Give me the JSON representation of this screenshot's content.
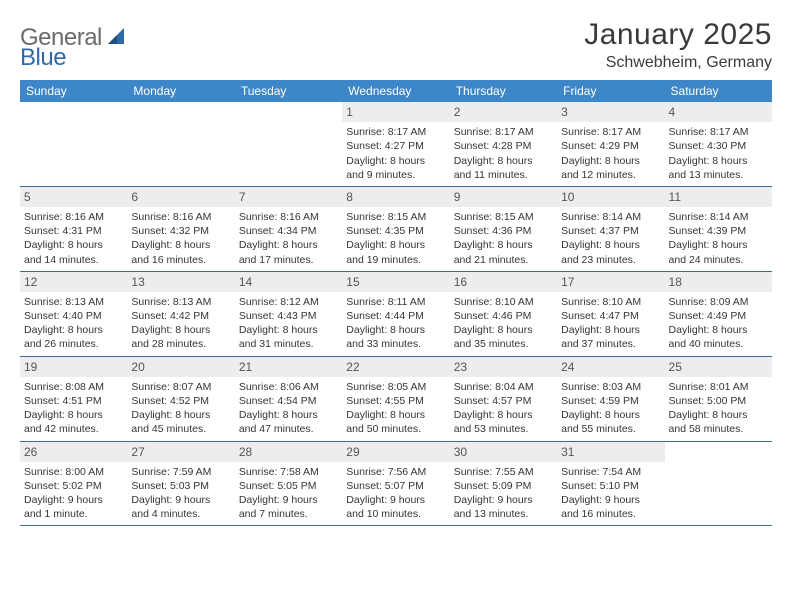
{
  "logo": {
    "part1": "General",
    "part2": "Blue"
  },
  "title": "January 2025",
  "location": "Schwebheim, Germany",
  "colors": {
    "header_bg": "#3d87c9",
    "header_text": "#ffffff",
    "daynum_bg": "#ededed",
    "border": "#3d6a9a",
    "logo_gray": "#6b6b6b",
    "logo_blue": "#2f6aa8",
    "body_text": "#353535"
  },
  "weekdays": [
    "Sunday",
    "Monday",
    "Tuesday",
    "Wednesday",
    "Thursday",
    "Friday",
    "Saturday"
  ],
  "weeks": [
    [
      null,
      null,
      null,
      {
        "n": "1",
        "sunrise": "8:17 AM",
        "sunset": "4:27 PM",
        "day_h": 8,
        "day_m": 9
      },
      {
        "n": "2",
        "sunrise": "8:17 AM",
        "sunset": "4:28 PM",
        "day_h": 8,
        "day_m": 11
      },
      {
        "n": "3",
        "sunrise": "8:17 AM",
        "sunset": "4:29 PM",
        "day_h": 8,
        "day_m": 12
      },
      {
        "n": "4",
        "sunrise": "8:17 AM",
        "sunset": "4:30 PM",
        "day_h": 8,
        "day_m": 13
      }
    ],
    [
      {
        "n": "5",
        "sunrise": "8:16 AM",
        "sunset": "4:31 PM",
        "day_h": 8,
        "day_m": 14
      },
      {
        "n": "6",
        "sunrise": "8:16 AM",
        "sunset": "4:32 PM",
        "day_h": 8,
        "day_m": 16
      },
      {
        "n": "7",
        "sunrise": "8:16 AM",
        "sunset": "4:34 PM",
        "day_h": 8,
        "day_m": 17
      },
      {
        "n": "8",
        "sunrise": "8:15 AM",
        "sunset": "4:35 PM",
        "day_h": 8,
        "day_m": 19
      },
      {
        "n": "9",
        "sunrise": "8:15 AM",
        "sunset": "4:36 PM",
        "day_h": 8,
        "day_m": 21
      },
      {
        "n": "10",
        "sunrise": "8:14 AM",
        "sunset": "4:37 PM",
        "day_h": 8,
        "day_m": 23
      },
      {
        "n": "11",
        "sunrise": "8:14 AM",
        "sunset": "4:39 PM",
        "day_h": 8,
        "day_m": 24
      }
    ],
    [
      {
        "n": "12",
        "sunrise": "8:13 AM",
        "sunset": "4:40 PM",
        "day_h": 8,
        "day_m": 26
      },
      {
        "n": "13",
        "sunrise": "8:13 AM",
        "sunset": "4:42 PM",
        "day_h": 8,
        "day_m": 28
      },
      {
        "n": "14",
        "sunrise": "8:12 AM",
        "sunset": "4:43 PM",
        "day_h": 8,
        "day_m": 31
      },
      {
        "n": "15",
        "sunrise": "8:11 AM",
        "sunset": "4:44 PM",
        "day_h": 8,
        "day_m": 33
      },
      {
        "n": "16",
        "sunrise": "8:10 AM",
        "sunset": "4:46 PM",
        "day_h": 8,
        "day_m": 35
      },
      {
        "n": "17",
        "sunrise": "8:10 AM",
        "sunset": "4:47 PM",
        "day_h": 8,
        "day_m": 37
      },
      {
        "n": "18",
        "sunrise": "8:09 AM",
        "sunset": "4:49 PM",
        "day_h": 8,
        "day_m": 40
      }
    ],
    [
      {
        "n": "19",
        "sunrise": "8:08 AM",
        "sunset": "4:51 PM",
        "day_h": 8,
        "day_m": 42
      },
      {
        "n": "20",
        "sunrise": "8:07 AM",
        "sunset": "4:52 PM",
        "day_h": 8,
        "day_m": 45
      },
      {
        "n": "21",
        "sunrise": "8:06 AM",
        "sunset": "4:54 PM",
        "day_h": 8,
        "day_m": 47
      },
      {
        "n": "22",
        "sunrise": "8:05 AM",
        "sunset": "4:55 PM",
        "day_h": 8,
        "day_m": 50
      },
      {
        "n": "23",
        "sunrise": "8:04 AM",
        "sunset": "4:57 PM",
        "day_h": 8,
        "day_m": 53
      },
      {
        "n": "24",
        "sunrise": "8:03 AM",
        "sunset": "4:59 PM",
        "day_h": 8,
        "day_m": 55
      },
      {
        "n": "25",
        "sunrise": "8:01 AM",
        "sunset": "5:00 PM",
        "day_h": 8,
        "day_m": 58
      }
    ],
    [
      {
        "n": "26",
        "sunrise": "8:00 AM",
        "sunset": "5:02 PM",
        "day_h": 9,
        "day_m": 1
      },
      {
        "n": "27",
        "sunrise": "7:59 AM",
        "sunset": "5:03 PM",
        "day_h": 9,
        "day_m": 4
      },
      {
        "n": "28",
        "sunrise": "7:58 AM",
        "sunset": "5:05 PM",
        "day_h": 9,
        "day_m": 7
      },
      {
        "n": "29",
        "sunrise": "7:56 AM",
        "sunset": "5:07 PM",
        "day_h": 9,
        "day_m": 10
      },
      {
        "n": "30",
        "sunrise": "7:55 AM",
        "sunset": "5:09 PM",
        "day_h": 9,
        "day_m": 13
      },
      {
        "n": "31",
        "sunrise": "7:54 AM",
        "sunset": "5:10 PM",
        "day_h": 9,
        "day_m": 16
      },
      null
    ]
  ],
  "labels": {
    "sunrise": "Sunrise:",
    "sunset": "Sunset:",
    "daylight": "Daylight:",
    "hours": "hours",
    "and": "and",
    "minute_s": "minute",
    "minutes": "minutes"
  }
}
